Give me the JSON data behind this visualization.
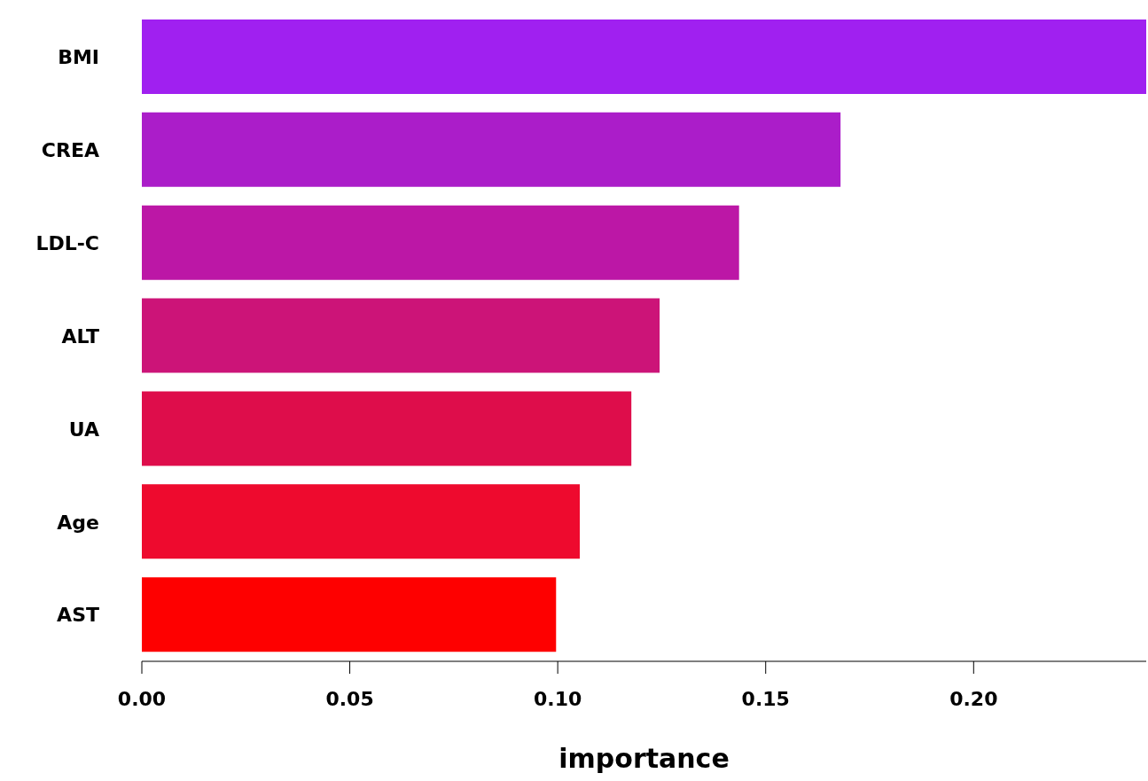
{
  "chart_data": {
    "type": "bar",
    "orientation": "horizontal",
    "xlabel": "importance",
    "categories": [
      "BMI",
      "CREA",
      "LDL-C",
      "ALT",
      "UA",
      "Age",
      "AST"
    ],
    "values": [
      0.2415,
      0.168,
      0.1436,
      0.1245,
      0.1177,
      0.1053,
      0.0996
    ],
    "colors": [
      "#a020f0",
      "#ab1dc9",
      "#bc17a6",
      "#cc1478",
      "#de0d4b",
      "#ee0a2e",
      "#fe0000"
    ],
    "xlim": [
      0,
      0.2415
    ],
    "xticks": [
      {
        "value": 0,
        "label": "0.00"
      },
      {
        "value": 0.05,
        "label": "0.05"
      },
      {
        "value": 0.1,
        "label": "0.10"
      },
      {
        "value": 0.15,
        "label": "0.15"
      },
      {
        "value": 0.2,
        "label": "0.20"
      }
    ],
    "grid": false,
    "legend": false
  }
}
